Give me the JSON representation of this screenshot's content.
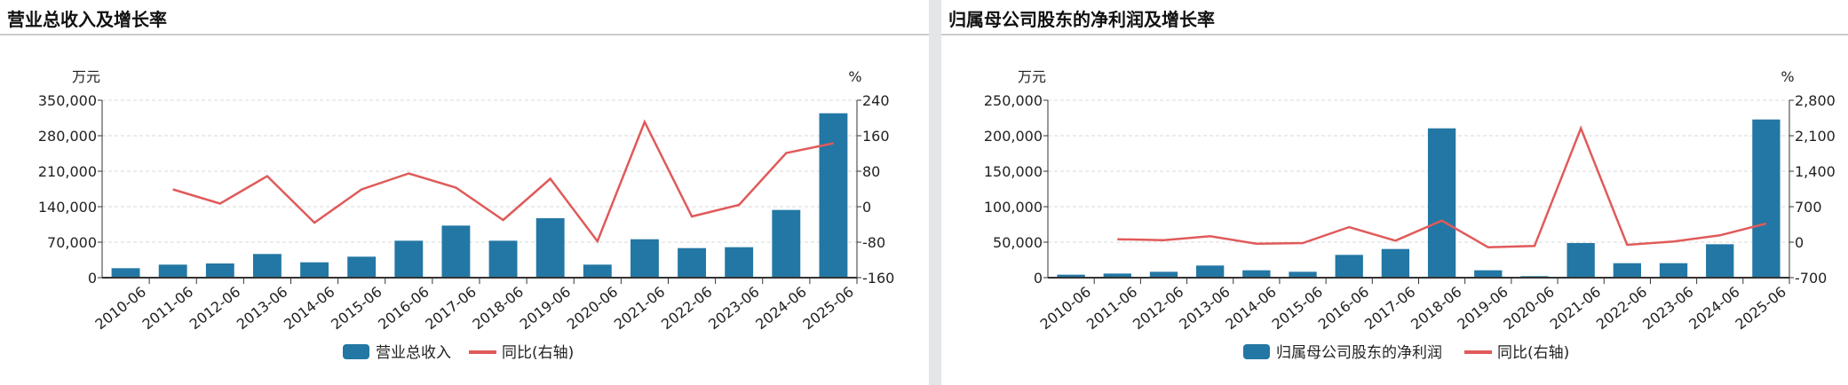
{
  "colors": {
    "bar": "#2377a4",
    "line": "#e05a5a",
    "grid": "#d9d9d9",
    "axis": "#333333"
  },
  "chart_data": [
    {
      "type": "bar+line",
      "title": "营业总收入及增长率",
      "left_unit": "万元",
      "right_unit": "%",
      "categories": [
        "2010-06",
        "2011-06",
        "2012-06",
        "2013-06",
        "2014-06",
        "2015-06",
        "2016-06",
        "2017-06",
        "2018-06",
        "2019-06",
        "2020-06",
        "2021-06",
        "2022-06",
        "2023-06",
        "2024-06",
        "2025-06"
      ],
      "ylim": [
        0,
        350000
      ],
      "yticks": [
        "0",
        "70,000",
        "140,000",
        "210,000",
        "280,000",
        "350,000"
      ],
      "y2lim": [
        -160,
        240
      ],
      "y2ticks": [
        "-160",
        "-80",
        "0",
        "80",
        "160",
        "240"
      ],
      "grid": true,
      "legend_position": "bottom",
      "series": [
        {
          "name": "营业总收入",
          "type": "bar",
          "axis": "left",
          "values": [
            18700,
            25700,
            28000,
            46700,
            30300,
            41400,
            72900,
            102700,
            72900,
            117300,
            25700,
            75800,
            58300,
            60100,
            133600,
            324300
          ]
        },
        {
          "name": "同比(右轴)",
          "type": "line",
          "axis": "right",
          "values": [
            null,
            39,
            7,
            69,
            -36,
            39,
            75,
            43,
            -30,
            63,
            -78,
            191,
            -22,
            4,
            121,
            143
          ]
        }
      ]
    },
    {
      "type": "bar+line",
      "title": "归属母公司股东的净利润及增长率",
      "left_unit": "万元",
      "right_unit": "%",
      "categories": [
        "2010-06",
        "2011-06",
        "2012-06",
        "2013-06",
        "2014-06",
        "2015-06",
        "2016-06",
        "2017-06",
        "2018-06",
        "2019-06",
        "2020-06",
        "2021-06",
        "2022-06",
        "2023-06",
        "2024-06",
        "2025-06"
      ],
      "ylim": [
        0,
        250000
      ],
      "yticks": [
        "0",
        "50,000",
        "100,000",
        "150,000",
        "200,000",
        "250,000"
      ],
      "y2lim": [
        -700,
        2800
      ],
      "y2ticks": [
        "-700",
        "0",
        "700",
        "1,400",
        "2,100",
        "2,800"
      ],
      "grid": true,
      "legend_position": "bottom",
      "series": [
        {
          "name": "归属母公司股东的净利润",
          "type": "bar",
          "axis": "left",
          "values": [
            4200,
            5800,
            8300,
            17100,
            10400,
            8300,
            32100,
            40400,
            210400,
            10400,
            2100,
            48800,
            20400,
            20400,
            47100,
            222900
          ]
        },
        {
          "name": "同比(右轴)",
          "type": "line",
          "axis": "right",
          "values": [
            null,
            58,
            41,
            117,
            -29,
            -18,
            298,
            29,
            426,
            -99,
            -76,
            2246,
            -53,
            12,
            134,
            368
          ]
        }
      ]
    }
  ]
}
